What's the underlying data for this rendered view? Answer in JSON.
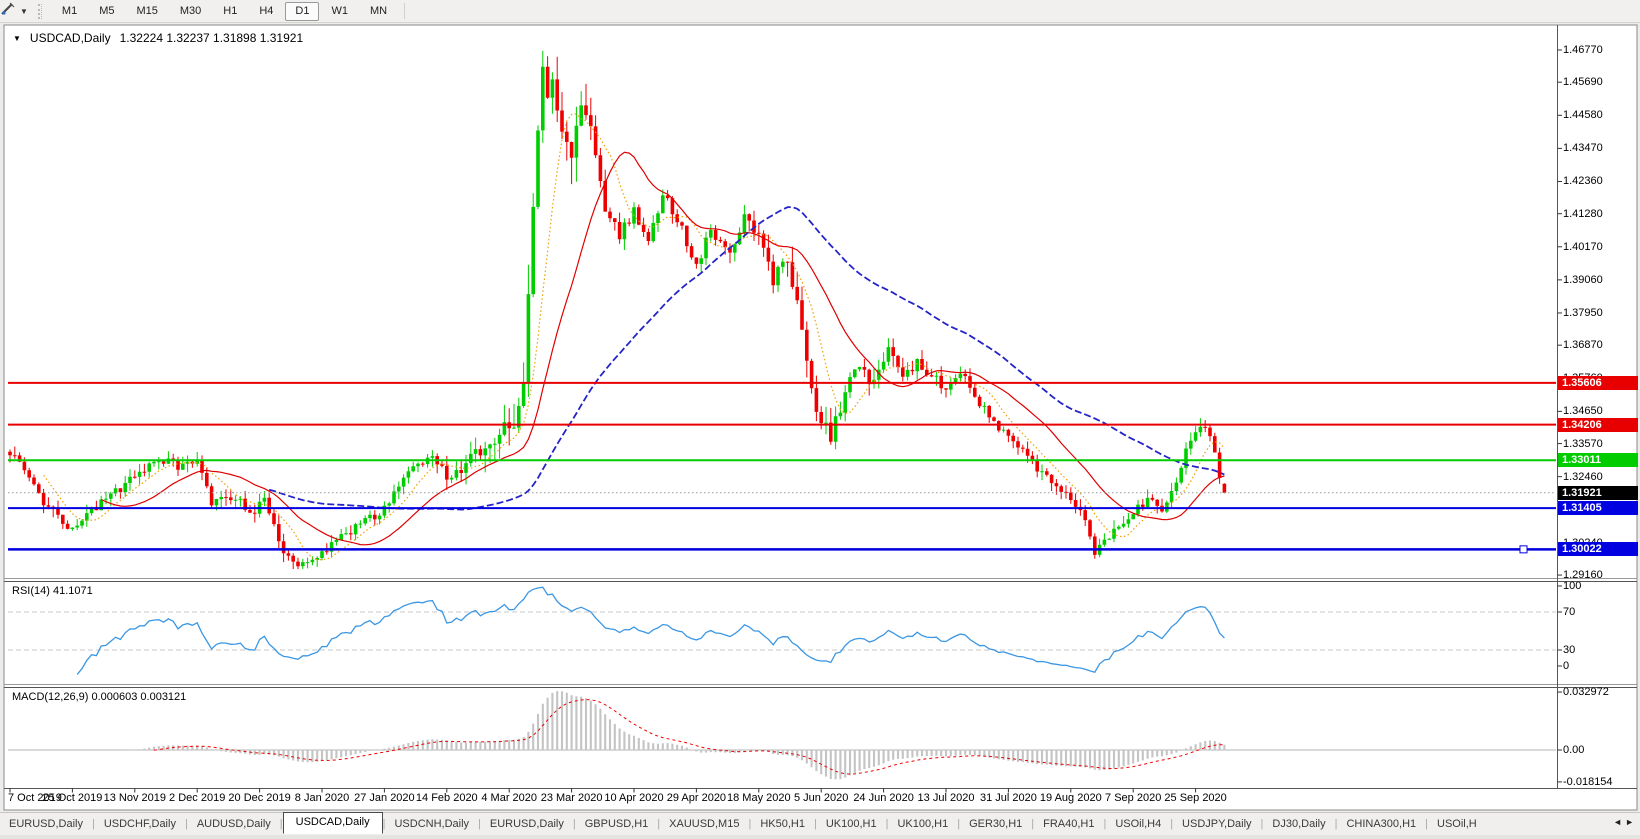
{
  "toolbar": {
    "tool_icon": "crosshair-tool-icon",
    "timeframes": [
      "M1",
      "M5",
      "M15",
      "M30",
      "H1",
      "H4",
      "D1",
      "W1",
      "MN"
    ],
    "active_timeframe": "D1"
  },
  "chart_data": {
    "type": "candlestick",
    "symbol": "USDCAD",
    "timeframe": "Daily",
    "title_symbol": "USDCAD,Daily",
    "title_quotes": "1.32224 1.32237 1.31898 1.31921",
    "last_quote": {
      "open": "1.32224",
      "high": "1.32237",
      "low": "1.31898",
      "close": "1.31921"
    },
    "y_axis": {
      "ticks": [
        "1.46770",
        "1.45690",
        "1.44580",
        "1.43470",
        "1.42360",
        "1.41280",
        "1.40170",
        "1.39060",
        "1.37950",
        "1.36870",
        "1.35760",
        "1.34650",
        "1.33570",
        "1.32460",
        "1.31350",
        "1.30240",
        "1.29160"
      ],
      "range": [
        1.28994,
        1.475078
      ]
    },
    "x_axis": {
      "date_labels": [
        "7 Oct 2019",
        "25 Oct 2019",
        "13 Nov 2019",
        "2 Dec 2019",
        "20 Dec 2019",
        "8 Jan 2020",
        "27 Jan 2020",
        "14 Feb 2020",
        "4 Mar 2020",
        "23 Mar 2020",
        "10 Apr 2020",
        "29 Apr 2020",
        "18 May 2020",
        "5 Jun 2020",
        "24 Jun 2020",
        "13 Jul 2020",
        "31 Jul 2020",
        "19 Aug 2020",
        "7 Sep 2020",
        "25 Sep 2020"
      ],
      "candles_per_label": 13
    },
    "candles": {
      "count": 254,
      "up_color": "#00cd00",
      "down_color": "#ef0000",
      "close_anchors": [
        [
          0,
          1.3325
        ],
        [
          4,
          1.324
        ],
        [
          8,
          1.314
        ],
        [
          13,
          1.3065
        ],
        [
          19,
          1.316
        ],
        [
          26,
          1.3245
        ],
        [
          31,
          1.33
        ],
        [
          36,
          1.328
        ],
        [
          39,
          1.3295
        ],
        [
          42,
          1.316
        ],
        [
          47,
          1.3175
        ],
        [
          50,
          1.312
        ],
        [
          53,
          1.3165
        ],
        [
          57,
          1.2985
        ],
        [
          61,
          1.2952
        ],
        [
          65,
          1.2995
        ],
        [
          71,
          1.3065
        ],
        [
          78,
          1.314
        ],
        [
          84,
          1.327
        ],
        [
          88,
          1.331
        ],
        [
          91,
          1.325
        ],
        [
          95,
          1.3285
        ],
        [
          99,
          1.335
        ],
        [
          103,
          1.3415
        ],
        [
          105,
          1.338
        ],
        [
          107,
          1.353
        ],
        [
          109,
          1.412
        ],
        [
          111,
          1.464
        ],
        [
          112,
          1.45
        ],
        [
          113,
          1.456
        ],
        [
          115,
          1.442
        ],
        [
          117,
          1.433
        ],
        [
          119,
          1.446
        ],
        [
          121,
          1.439
        ],
        [
          124,
          1.415
        ],
        [
          127,
          1.406
        ],
        [
          130,
          1.414
        ],
        [
          133,
          1.405
        ],
        [
          136,
          1.419
        ],
        [
          139,
          1.411
        ],
        [
          143,
          1.3955
        ],
        [
          146,
          1.4075
        ],
        [
          150,
          1.3985
        ],
        [
          153,
          1.412
        ],
        [
          156,
          1.406
        ],
        [
          159,
          1.3905
        ],
        [
          161,
          1.399
        ],
        [
          164,
          1.385
        ],
        [
          167,
          1.356
        ],
        [
          169,
          1.342
        ],
        [
          171,
          1.3385
        ],
        [
          174,
          1.353
        ],
        [
          177,
          1.362
        ],
        [
          180,
          1.3555
        ],
        [
          183,
          1.368
        ],
        [
          186,
          1.3575
        ],
        [
          189,
          1.3625
        ],
        [
          192,
          1.358
        ],
        [
          195,
          1.3545
        ],
        [
          198,
          1.3605
        ],
        [
          201,
          1.3525
        ],
        [
          204,
          1.344
        ],
        [
          207,
          1.34
        ],
        [
          210,
          1.3345
        ],
        [
          213,
          1.329
        ],
        [
          216,
          1.324
        ],
        [
          219,
          1.321
        ],
        [
          222,
          1.316
        ],
        [
          224,
          1.309
        ],
        [
          226,
          1.2995
        ],
        [
          228,
          1.304
        ],
        [
          231,
          1.308
        ],
        [
          234,
          1.313
        ],
        [
          237,
          1.317
        ],
        [
          240,
          1.313
        ],
        [
          243,
          1.323
        ],
        [
          245,
          1.333
        ],
        [
          247,
          1.3405
        ],
        [
          249,
          1.3418
        ],
        [
          251,
          1.334
        ],
        [
          252,
          1.3255
        ],
        [
          253,
          1.3192
        ]
      ]
    },
    "moving_averages": [
      {
        "period": 8,
        "color": "#f0a000",
        "style": "dotted",
        "width": 1.2
      },
      {
        "period": 20,
        "color": "#e00000",
        "style": "solid",
        "width": 1.2
      },
      {
        "period": 55,
        "color": "#2424c8",
        "style": "dashed",
        "width": 1.8
      }
    ],
    "levels": [
      {
        "price": 1.35606,
        "label": "1.35606",
        "color": "#e80000",
        "badge_bg": "#e80000",
        "width": 2,
        "style": "solid"
      },
      {
        "price": 1.34206,
        "label": "1.34206",
        "color": "#e80000",
        "badge_bg": "#e80000",
        "width": 2,
        "style": "solid"
      },
      {
        "price": 1.33011,
        "label": "1.33011",
        "color": "#00cc00",
        "badge_bg": "#00cc00",
        "width": 2,
        "style": "solid"
      },
      {
        "price": 1.31921,
        "label": "1.31921",
        "color": "#9a9a9a",
        "badge_bg": "#000000",
        "width": 1,
        "style": "dotted",
        "role": "bid-price-line"
      },
      {
        "price": 1.31405,
        "label": "1.31405",
        "color": "#0000e0",
        "badge_bg": "#0000e0",
        "width": 2,
        "style": "solid"
      },
      {
        "price": 1.30022,
        "label": "1.30022",
        "color": "#0000e0",
        "badge_bg": "#0000e0",
        "width": 2.5,
        "style": "solid",
        "selected": true
      }
    ],
    "indicators": {
      "rsi": {
        "label": "RSI(14) 41.1071",
        "period": 14,
        "value": "41.1071",
        "axis": [
          "100",
          "70",
          "30",
          "0"
        ],
        "level_lines": [
          70,
          30
        ],
        "color": "#3b97e3",
        "level_color": "#c8c8c8"
      },
      "macd": {
        "label": "MACD(12,26,9) 0.000603 0.003121",
        "params": [
          12,
          26,
          9
        ],
        "values": [
          "0.000603",
          "0.003121"
        ],
        "axis": [
          "0.032972",
          "0.00",
          "-0.018154"
        ],
        "histogram_color": "#c4c4c4",
        "signal_color": "#f00000",
        "zero_line_color": "#b4b4b4"
      }
    }
  },
  "tabs": {
    "items": [
      "EURUSD,Daily",
      "USDCHF,Daily",
      "AUDUSD,Daily",
      "USDCAD,Daily",
      "USDCNH,Daily",
      "EURUSD,Daily",
      "GBPUSD,H1",
      "XAUUSD,M15",
      "HK50,H1",
      "UK100,H1",
      "UK100,H1",
      "GER30,H1",
      "FRA40,H1",
      "USOil,H4",
      "USDJPY,Daily",
      "DJ30,Daily",
      "CHINA300,H1",
      "USOil,H"
    ],
    "active_index": 3,
    "scroll_left_icon": "◄",
    "scroll_right_icon": "►"
  }
}
